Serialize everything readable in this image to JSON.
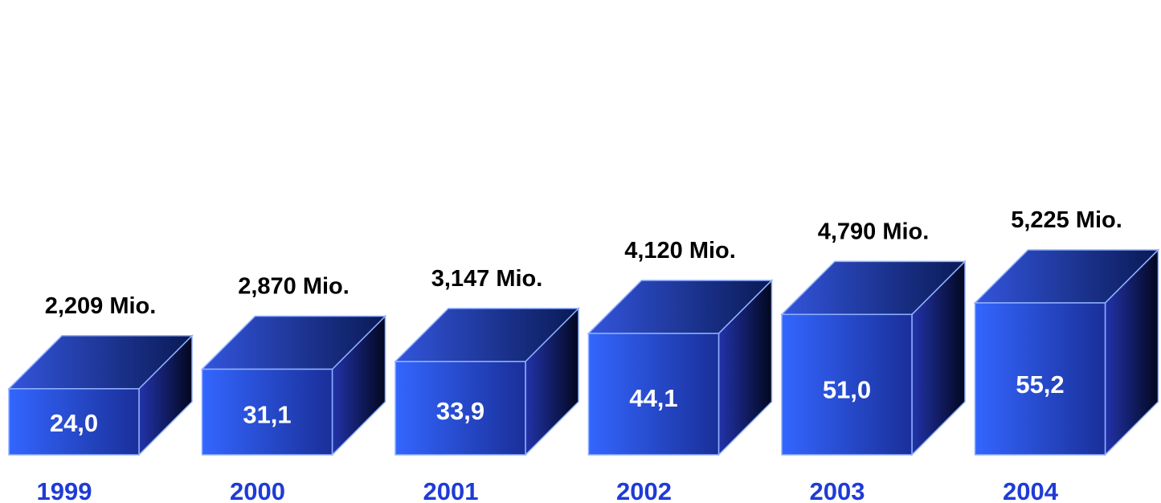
{
  "chart_data": {
    "type": "bar",
    "style": "3d-box",
    "categories": [
      "1999",
      "2000",
      "2001",
      "2002",
      "2003",
      "2004"
    ],
    "values": [
      24.0,
      31.1,
      33.9,
      44.1,
      51.0,
      55.2
    ],
    "value_labels": [
      "24,0",
      "31,1",
      "33,9",
      "44,1",
      "51,0",
      "55,2"
    ],
    "top_labels": [
      "2,209 Mio.",
      "2,870 Mio.",
      "3,147 Mio.",
      "4,120 Mio.",
      "4,790 Mio.",
      "5,225 Mio."
    ],
    "title": "",
    "xlabel": "",
    "ylabel": "",
    "grid": false,
    "legend": "none"
  },
  "colors": {
    "front_light": "#3366ff",
    "front_dark": "#1a2f99",
    "top_light": "#3355dd",
    "top_dark": "#0a1a55",
    "side_light": "#2233aa",
    "side_dark": "#02071e",
    "edge": "#8fb0ff",
    "year_text": "#1f3bd6",
    "value_text": "#ffffff",
    "top_label_text": "#000000"
  }
}
